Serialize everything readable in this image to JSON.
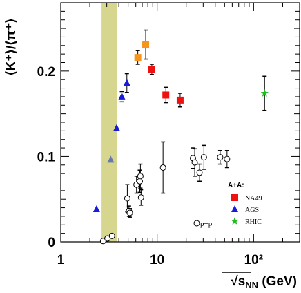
{
  "chart_data": {
    "type": "scatter",
    "title": "",
    "xlabel_prefix": "√",
    "xlabel_main": "s",
    "xlabel_sub": "NN",
    "xlabel_unit": " (GeV)",
    "ylabel_main": "⟨K⁺⟩/⟨π⁺⟩",
    "xscale": "log",
    "xlim": [
      1,
      300
    ],
    "ylim": [
      0,
      0.28
    ],
    "x_ticks": [
      {
        "value": 1,
        "label": "1"
      },
      {
        "value": 10,
        "label": "10"
      },
      {
        "value": 100,
        "label": "10²"
      }
    ],
    "y_ticks": [
      {
        "value": 0,
        "label": "0"
      },
      {
        "value": 0.1,
        "label": "0.1"
      },
      {
        "value": 0.2,
        "label": "0.2"
      }
    ],
    "band": {
      "x": [
        2.65,
        3.85
      ],
      "color": "#d6d68f"
    },
    "legend": {
      "header": "A+A:",
      "position": "bottom-right",
      "entries": [
        {
          "label": "NA49",
          "marker": "square",
          "color": "#ee1111"
        },
        {
          "label": "AGS",
          "marker": "triangle",
          "color": "#1a1adb"
        },
        {
          "label": "RHIC",
          "marker": "star",
          "color": "#22bb22"
        }
      ]
    },
    "annotation": {
      "text": "p+p",
      "marker": "circle-open"
    },
    "series": [
      {
        "name": "NA49",
        "marker": "square",
        "color": "#ee1111",
        "points": [
          {
            "x": 8.8,
            "y": 0.202,
            "err": 0.006
          },
          {
            "x": 12.3,
            "y": 0.172,
            "err": 0.009
          },
          {
            "x": 17.3,
            "y": 0.166,
            "err": 0.008
          }
        ]
      },
      {
        "name": "",
        "marker": "square",
        "color": "#f7941d",
        "points": [
          {
            "x": 6.3,
            "y": 0.216,
            "err": 0.008
          },
          {
            "x": 7.6,
            "y": 0.231,
            "err": 0.017
          }
        ]
      },
      {
        "name": "AGS",
        "marker": "triangle",
        "color": "#1a1adb",
        "points": [
          {
            "x": 2.35,
            "y": 0.038,
            "err": 0
          },
          {
            "x": 3.8,
            "y": 0.133,
            "err": 0
          },
          {
            "x": 4.3,
            "y": 0.17,
            "err": 0.006
          },
          {
            "x": 4.85,
            "y": 0.186,
            "err": 0.011
          }
        ]
      },
      {
        "name": "",
        "marker": "triangle",
        "color": "#6878a8",
        "points": [
          {
            "x": 3.3,
            "y": 0.096,
            "err": 0
          }
        ]
      },
      {
        "name": "RHIC",
        "marker": "star",
        "color": "#22bb22",
        "points": [
          {
            "x": 130,
            "y": 0.174,
            "err": 0.02
          }
        ]
      },
      {
        "name": "p+p",
        "marker": "circle-open",
        "color": "#000000",
        "points": [
          {
            "x": 2.75,
            "y": 0.001,
            "err": 0
          },
          {
            "x": 3.05,
            "y": 0.004,
            "err": 0
          },
          {
            "x": 3.4,
            "y": 0.007,
            "err": 0
          },
          {
            "x": 4.9,
            "y": 0.051,
            "err": 0.016
          },
          {
            "x": 5.1,
            "y": 0.036,
            "err": 0.006
          },
          {
            "x": 5.2,
            "y": 0.034,
            "err": 0.005
          },
          {
            "x": 6.1,
            "y": 0.067,
            "err": 0.01
          },
          {
            "x": 6.6,
            "y": 0.071,
            "err": 0.013
          },
          {
            "x": 6.7,
            "y": 0.077,
            "err": 0.014
          },
          {
            "x": 6.8,
            "y": 0.052,
            "err": 0.009
          },
          {
            "x": 11.5,
            "y": 0.087,
            "err": 0.03
          },
          {
            "x": 23.5,
            "y": 0.098,
            "err": 0.012
          },
          {
            "x": 24.5,
            "y": 0.093,
            "err": 0.016
          },
          {
            "x": 27.5,
            "y": 0.081,
            "err": 0.01
          },
          {
            "x": 30.5,
            "y": 0.099,
            "err": 0.014
          },
          {
            "x": 45,
            "y": 0.099,
            "err": 0.008
          },
          {
            "x": 53,
            "y": 0.097,
            "err": 0.01
          }
        ]
      }
    ]
  }
}
